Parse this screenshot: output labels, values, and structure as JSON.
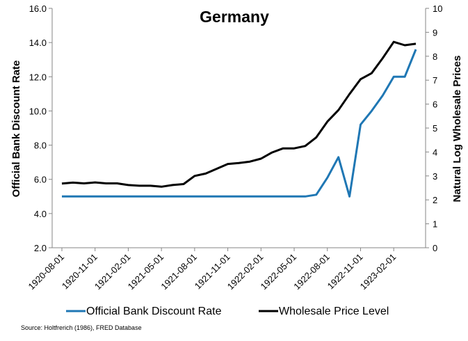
{
  "chart_data": {
    "type": "line",
    "title": "Germany",
    "ylabel_left": "Official Bank Discount Rate",
    "ylabel_right": "Natural Log Wholesale Prices",
    "ylim_left": [
      2.0,
      16.0
    ],
    "ylim_right": [
      0,
      10
    ],
    "yticks_left": [
      "2.0",
      "4.0",
      "6.0",
      "8.0",
      "10.0",
      "12.0",
      "14.0",
      "16.0"
    ],
    "yticks_right": [
      "0",
      "1",
      "2",
      "3",
      "4",
      "5",
      "6",
      "7",
      "8",
      "9",
      "10"
    ],
    "x": [
      "1920-08-01",
      "1920-09-01",
      "1920-10-01",
      "1920-11-01",
      "1920-12-01",
      "1921-01-01",
      "1921-02-01",
      "1921-03-01",
      "1921-04-01",
      "1921-05-01",
      "1921-06-01",
      "1921-07-01",
      "1921-08-01",
      "1921-09-01",
      "1921-10-01",
      "1921-11-01",
      "1921-12-01",
      "1922-01-01",
      "1922-02-01",
      "1922-03-01",
      "1922-04-01",
      "1922-05-01",
      "1922-06-01",
      "1922-07-01",
      "1922-08-01",
      "1922-09-01",
      "1922-10-01",
      "1922-11-01",
      "1922-12-01",
      "1923-01-01",
      "1923-02-01",
      "1923-03-01",
      "1923-04-01"
    ],
    "xtick_labels": [
      "1920-08-01",
      "1920-11-01",
      "1921-02-01",
      "1921-05-01",
      "1921-08-01",
      "1921-11-01",
      "1922-02-01",
      "1922-05-01",
      "1922-08-01",
      "1922-11-01",
      "1923-02-01"
    ],
    "series": [
      {
        "name": "Official Bank Discount Rate",
        "axis": "left",
        "color": "#1f77b4",
        "values": [
          5.0,
          5.0,
          5.0,
          5.0,
          5.0,
          5.0,
          5.0,
          5.0,
          5.0,
          5.0,
          5.0,
          5.0,
          5.0,
          5.0,
          5.0,
          5.0,
          5.0,
          5.0,
          5.0,
          5.0,
          5.0,
          5.0,
          5.0,
          5.1,
          6.1,
          7.3,
          5.0,
          9.2,
          10.0,
          10.9,
          12.0,
          12.0,
          13.6
        ]
      },
      {
        "name": "Wholesale Price Level",
        "axis": "right",
        "color": "#000000",
        "values": [
          2.68,
          2.72,
          2.69,
          2.73,
          2.69,
          2.69,
          2.62,
          2.59,
          2.59,
          2.55,
          2.62,
          2.66,
          3.0,
          3.1,
          3.3,
          3.5,
          3.54,
          3.6,
          3.72,
          3.98,
          4.15,
          4.15,
          4.25,
          4.61,
          5.27,
          5.75,
          6.42,
          7.04,
          7.29,
          7.92,
          8.6,
          8.46,
          8.52
        ]
      }
    ],
    "legend_position": "bottom",
    "source": "Source: Holtfrerich (1986), FRED Database"
  }
}
